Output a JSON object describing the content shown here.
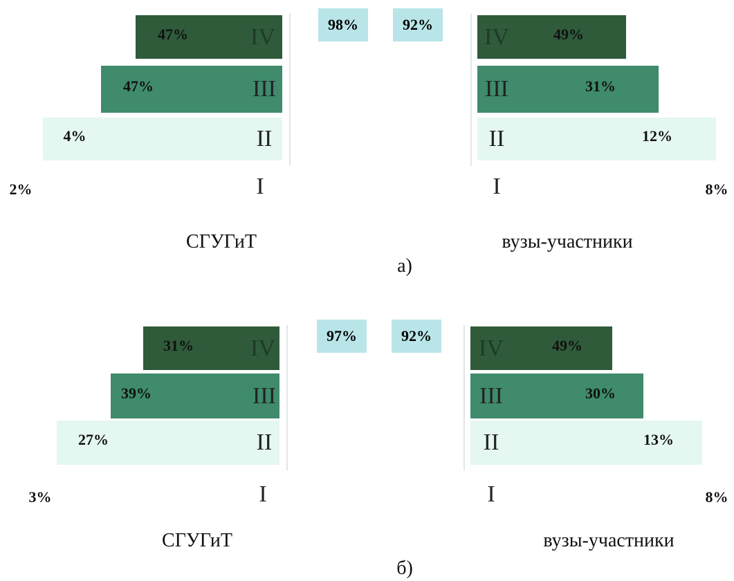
{
  "panels": [
    {
      "caption": "а)",
      "left": {
        "name": "СГУГиТ",
        "total": "98%",
        "levels": [
          {
            "level": "IV",
            "value": "47%"
          },
          {
            "level": "III",
            "value": "47%"
          },
          {
            "level": "II",
            "value": "4%"
          },
          {
            "level": "I",
            "value": "2%"
          }
        ]
      },
      "right": {
        "name": "вузы-участники",
        "total": "92%",
        "levels": [
          {
            "level": "IV",
            "value": "49%"
          },
          {
            "level": "III",
            "value": "31%"
          },
          {
            "level": "II",
            "value": "12%"
          },
          {
            "level": "I",
            "value": "8%"
          }
        ]
      }
    },
    {
      "caption": "б)",
      "left": {
        "name": "СГУГиТ",
        "total": "97%",
        "levels": [
          {
            "level": "IV",
            "value": "31%"
          },
          {
            "level": "III",
            "value": "39%"
          },
          {
            "level": "II",
            "value": "27%"
          },
          {
            "level": "I",
            "value": "3%"
          }
        ]
      },
      "right": {
        "name": "вузы-участники",
        "total": "92%",
        "levels": [
          {
            "level": "IV",
            "value": "49%"
          },
          {
            "level": "III",
            "value": "30%"
          },
          {
            "level": "II",
            "value": "13%"
          },
          {
            "level": "I",
            "value": "8%"
          }
        ]
      }
    }
  ]
}
